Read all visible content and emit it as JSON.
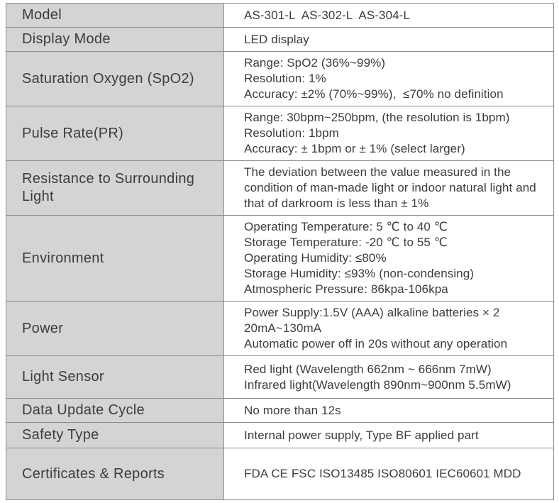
{
  "colors": {
    "label_bg": "#d4d4d4",
    "border": "#8c8c8c",
    "text": "#3c3c3c",
    "page_bg": "#ffffff"
  },
  "spec_table": {
    "rows": [
      {
        "label": "Model",
        "value_lines": [
          "AS-301-L  AS-302-L  AS-304-L"
        ]
      },
      {
        "label": "Display Mode",
        "value_lines": [
          "LED display"
        ]
      },
      {
        "label": "Saturation Oxygen (SpO2)",
        "value_lines": [
          "Range: SpO2 (36%~99%)",
          "Resolution: 1%",
          "Accuracy: ±2% (70%~99%),  ≤70% no definition"
        ]
      },
      {
        "label": "Pulse Rate(PR)",
        "value_lines": [
          "Range: 30bpm~250bpm, (the resolution is 1bpm)",
          "Resolution: 1bpm",
          "Accuracy: ± 1bpm or ± 1% (select larger)"
        ]
      },
      {
        "label": "Resistance to Surrounding Light",
        "value_lines": [
          "The deviation between the value measured in the condition of man-made light or indoor natural light and that of darkroom is less than ± 1%"
        ]
      },
      {
        "label": "Environment",
        "value_lines": [
          "Operating Temperature: 5 ℃ to 40 ℃",
          "Storage Temperature: -20 ℃ to 55 ℃",
          "Operating Humidity: ≤80%",
          "Storage Humidity: ≤93% (non-condensing)",
          "Atmospheric Pressure: 86kpa-106kpa"
        ]
      },
      {
        "label": "Power",
        "value_lines": [
          "Power Supply:1.5V (AAA) alkaline batteries × 2",
          "20mA~130mA",
          "Automatic power off in 20s without any operation"
        ]
      },
      {
        "label": "Light Sensor",
        "value_lines": [
          "Red light (Wavelength 662nm ~ 666nm 7mW)",
          "Infrared light(Wavelength 890nm~900nm 5.5mW)"
        ]
      },
      {
        "label": "Data Update Cycle",
        "value_lines": [
          "No more than 12s"
        ]
      },
      {
        "label": "Safety Type",
        "value_lines": [
          "Internal power supply, Type BF applied part"
        ]
      },
      {
        "label": "Certificates & Reports",
        "value_lines": [
          "FDA CE FSC ISO13485 ISO80601 IEC60601 MDD"
        ]
      }
    ]
  }
}
